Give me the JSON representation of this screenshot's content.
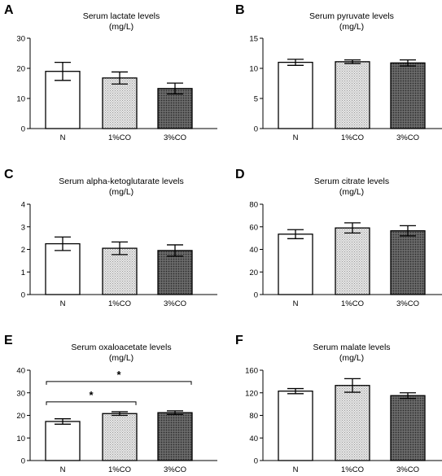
{
  "colors": {
    "N": "#ffffff",
    "1%CO": "#cfcfcf",
    "3%CO": "#575757"
  },
  "chart_data": [
    {
      "panel": "A",
      "type": "bar",
      "title": "Serum lactate levels",
      "title_unit": "(mg/L)",
      "categories": [
        "N",
        "1%CO",
        "3%CO"
      ],
      "values": [
        19,
        16.8,
        13.3
      ],
      "errors": [
        3,
        2,
        1.8
      ],
      "ylim": [
        0,
        30
      ],
      "yticks": [
        0,
        10,
        20,
        30
      ],
      "significance": []
    },
    {
      "panel": "B",
      "type": "bar",
      "title": "Serum pyruvate levels",
      "title_unit": "(mg/L)",
      "categories": [
        "N",
        "1%CO",
        "3%CO"
      ],
      "values": [
        11,
        11.1,
        10.9
      ],
      "errors": [
        0.5,
        0.3,
        0.5
      ],
      "ylim": [
        0,
        15
      ],
      "yticks": [
        0,
        5,
        10,
        15
      ],
      "significance": []
    },
    {
      "panel": "C",
      "type": "bar",
      "title": "Serum alpha-ketoglutarate levels",
      "title_unit": "(mg/L)",
      "categories": [
        "N",
        "1%CO",
        "3%CO"
      ],
      "values": [
        2.25,
        2.05,
        1.95
      ],
      "errors": [
        0.3,
        0.28,
        0.25
      ],
      "ylim": [
        0,
        4
      ],
      "yticks": [
        0,
        1,
        2,
        3,
        4
      ],
      "significance": []
    },
    {
      "panel": "D",
      "type": "bar",
      "title": "Serum citrate levels",
      "title_unit": "(mg/L)",
      "categories": [
        "N",
        "1%CO",
        "3%CO"
      ],
      "values": [
        53.5,
        59,
        56.5
      ],
      "errors": [
        4,
        4.5,
        4.5
      ],
      "ylim": [
        0,
        80
      ],
      "yticks": [
        0,
        20,
        40,
        60,
        80
      ],
      "significance": []
    },
    {
      "panel": "E",
      "type": "bar",
      "title": "Serum oxaloacetate levels",
      "title_unit": "(mg/L)",
      "categories": [
        "N",
        "1%CO",
        "3%CO"
      ],
      "values": [
        17.3,
        20.8,
        21.2
      ],
      "errors": [
        1.2,
        0.8,
        0.8
      ],
      "ylim": [
        0,
        40
      ],
      "yticks": [
        0,
        10,
        20,
        30,
        40
      ],
      "significance": [
        {
          "from": 0,
          "to": 1,
          "label": "*",
          "y": 26
        },
        {
          "from": 0,
          "to": 2,
          "label": "*",
          "y": 35
        }
      ]
    },
    {
      "panel": "F",
      "type": "bar",
      "title": "Serum malate levels",
      "title_unit": "(mg/L)",
      "categories": [
        "N",
        "1%CO",
        "3%CO"
      ],
      "values": [
        123,
        133,
        115
      ],
      "errors": [
        4.5,
        12,
        5
      ],
      "ylim": [
        0,
        160
      ],
      "yticks": [
        0,
        40,
        80,
        120,
        160
      ],
      "significance": []
    }
  ]
}
